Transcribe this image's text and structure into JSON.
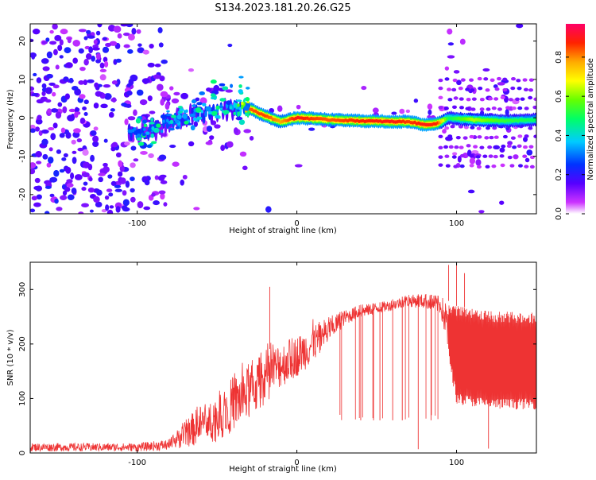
{
  "title": "S134.2023.181.20.26.G25",
  "chart_data": [
    {
      "type": "heatmap",
      "xlabel": "Height of straight line (km)",
      "ylabel": "Frequency (Hz)",
      "xlim": [
        -167,
        150
      ],
      "ylim": [
        -25,
        24.5
      ],
      "x_ticks": [
        -100,
        0,
        100
      ],
      "x_tick_labels": [
        "-100",
        "0",
        "100"
      ],
      "y_ticks": [
        -20,
        -10,
        0,
        10,
        20
      ],
      "y_tick_labels": [
        "-20",
        "-10",
        "0",
        "10",
        "20"
      ],
      "ridge": [
        {
          "x": -100,
          "f": -4.0,
          "a": 0.32
        },
        {
          "x": -90,
          "f": -3.5,
          "a": 0.33
        },
        {
          "x": -80,
          "f": -1.0,
          "a": 0.34
        },
        {
          "x": -70,
          "f": 0.5,
          "a": 0.36
        },
        {
          "x": -60,
          "f": 1.0,
          "a": 0.38
        },
        {
          "x": -50,
          "f": 1.5,
          "a": 0.4
        },
        {
          "x": -40,
          "f": 2.5,
          "a": 0.42
        },
        {
          "x": -30,
          "f": 2.5,
          "a": 0.86
        },
        {
          "x": -20,
          "f": 0.5,
          "a": 0.88
        },
        {
          "x": -10,
          "f": -1.0,
          "a": 0.8
        },
        {
          "x": 0,
          "f": 0.0,
          "a": 0.92
        },
        {
          "x": 10,
          "f": -0.2,
          "a": 0.88
        },
        {
          "x": 20,
          "f": -0.5,
          "a": 0.86
        },
        {
          "x": 40,
          "f": -0.8,
          "a": 0.9
        },
        {
          "x": 60,
          "f": -1.0,
          "a": 0.92
        },
        {
          "x": 70,
          "f": -1.0,
          "a": 0.88
        },
        {
          "x": 80,
          "f": -1.8,
          "a": 0.92
        },
        {
          "x": 88,
          "f": -1.5,
          "a": 0.9
        },
        {
          "x": 95,
          "f": 0.0,
          "a": 0.5
        },
        {
          "x": 110,
          "f": -0.5,
          "a": 0.65
        },
        {
          "x": 130,
          "f": -0.8,
          "a": 0.55
        },
        {
          "x": 150,
          "f": -0.5,
          "a": 0.5
        }
      ]
    },
    {
      "type": "line",
      "xlabel": "Height of straight line (km)",
      "ylabel": "SNR (10 * v/v)",
      "xlim": [
        -167,
        150
      ],
      "ylim": [
        0,
        350
      ],
      "x_ticks": [
        -100,
        0,
        100
      ],
      "x_tick_labels": [
        "-100",
        "0",
        "100"
      ],
      "y_ticks": [
        0,
        100,
        200,
        300
      ],
      "y_tick_labels": [
        "0",
        "100",
        "200",
        "300"
      ],
      "color": "#ee3333",
      "envelope": [
        {
          "x": -167,
          "lo": 3,
          "hi": 18
        },
        {
          "x": -100,
          "lo": 3,
          "hi": 18
        },
        {
          "x": -80,
          "lo": 5,
          "hi": 25
        },
        {
          "x": -70,
          "lo": 10,
          "hi": 60
        },
        {
          "x": -60,
          "lo": 15,
          "hi": 90
        },
        {
          "x": -50,
          "lo": 20,
          "hi": 110
        },
        {
          "x": -40,
          "lo": 40,
          "hi": 140
        },
        {
          "x": -30,
          "lo": 60,
          "hi": 160
        },
        {
          "x": -20,
          "lo": 90,
          "hi": 185
        },
        {
          "x": -10,
          "lo": 120,
          "hi": 205
        },
        {
          "x": 0,
          "lo": 140,
          "hi": 215
        },
        {
          "x": 10,
          "lo": 165,
          "hi": 235
        },
        {
          "x": 20,
          "lo": 200,
          "hi": 250
        },
        {
          "x": 30,
          "lo": 235,
          "hi": 262
        },
        {
          "x": 40,
          "lo": 248,
          "hi": 272
        },
        {
          "x": 50,
          "lo": 255,
          "hi": 275
        },
        {
          "x": 60,
          "lo": 262,
          "hi": 282
        },
        {
          "x": 70,
          "lo": 268,
          "hi": 290
        },
        {
          "x": 80,
          "lo": 265,
          "hi": 292
        },
        {
          "x": 90,
          "lo": 255,
          "hi": 288
        },
        {
          "x": 100,
          "lo": 90,
          "hi": 270
        },
        {
          "x": 120,
          "lo": 80,
          "hi": 260
        },
        {
          "x": 150,
          "lo": 80,
          "hi": 258
        }
      ],
      "spikes": [
        {
          "x": -17,
          "y": 305
        },
        {
          "x": 27,
          "y": 70
        },
        {
          "x": 40,
          "y": 60
        },
        {
          "x": 48,
          "y": 60
        },
        {
          "x": 52,
          "y": 60
        },
        {
          "x": 60,
          "y": 60
        },
        {
          "x": 66,
          "y": 60
        },
        {
          "x": 76,
          "y": 7
        },
        {
          "x": 84,
          "y": 60
        },
        {
          "x": 95,
          "y": 345
        },
        {
          "x": 100,
          "y": 345
        },
        {
          "x": 105,
          "y": 330
        },
        {
          "x": 120,
          "y": 8
        }
      ]
    }
  ],
  "colorbar": {
    "label": "Normalized spectral amplitude",
    "ticks": [
      0.0,
      0.2,
      0.4,
      0.6,
      0.8
    ],
    "tick_labels": [
      "0.0",
      "0.2",
      "0.4",
      "0.6",
      "0.8"
    ],
    "range": [
      0,
      0.97
    ]
  }
}
